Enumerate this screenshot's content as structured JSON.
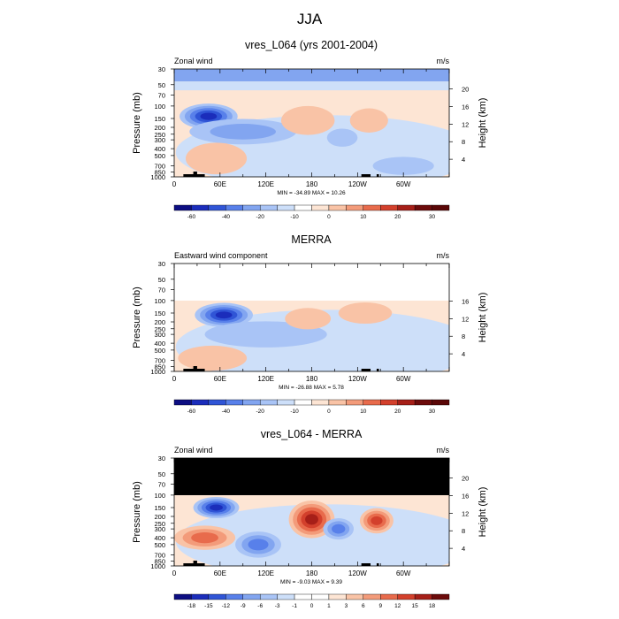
{
  "figure_title": "JJA",
  "chart_data": [
    {
      "type": "heatmap",
      "title": "vres_L064 (yrs 2001-2004)",
      "left_label": "Zonal wind",
      "right_label": "m/s",
      "xlabel": "",
      "ylabel": "Pressure (mb)",
      "ylabel_right": "Height (km)",
      "x_ticks": [
        "0",
        "60E",
        "120E",
        "180",
        "120W",
        "60W"
      ],
      "y_ticks": [
        "30",
        "50",
        "70",
        "100",
        "150",
        "200",
        "250",
        "300",
        "400",
        "500",
        "700",
        "850",
        "1000"
      ],
      "y2_ticks": [
        "4",
        "8",
        "12",
        "16",
        "20"
      ],
      "stats": "MIN = -34.89  MAX =  10.26",
      "colorbar_labels": [
        "-60",
        "-40",
        "-20",
        "-10",
        "0",
        "10",
        "20",
        "30"
      ],
      "min": -34.89,
      "max": 10.26,
      "top_pressure": 30,
      "field": [
        {
          "lon": 45,
          "p": 140,
          "value": -34,
          "rx": 38,
          "rp": 55,
          "sign": "neg"
        },
        {
          "lon": 90,
          "p": 230,
          "value": -12,
          "rx": 70,
          "rp": 90,
          "sign": "neg"
        },
        {
          "lon": 175,
          "p": 160,
          "value": 10,
          "rx": 35,
          "rp": 70,
          "sign": "pos"
        },
        {
          "lon": 255,
          "p": 160,
          "value": 8,
          "rx": 25,
          "rp": 60,
          "sign": "pos"
        },
        {
          "lon": 55,
          "p": 550,
          "value": 7,
          "rx": 40,
          "rp": 260,
          "sign": "pos"
        },
        {
          "lon": 220,
          "p": 280,
          "value": -5,
          "rx": 20,
          "rp": 80,
          "sign": "neg"
        },
        {
          "lon": 300,
          "p": 700,
          "value": -4,
          "rx": 40,
          "rp": 200,
          "sign": "neg"
        }
      ]
    },
    {
      "type": "heatmap",
      "title": "MERRA",
      "left_label": "Eastward wind component",
      "right_label": "m/s",
      "xlabel": "",
      "ylabel": "Pressure (mb)",
      "ylabel_right": "Height (km)",
      "x_ticks": [
        "0",
        "60E",
        "120E",
        "180",
        "120W",
        "60W"
      ],
      "y_ticks": [
        "30",
        "50",
        "70",
        "100",
        "150",
        "200",
        "250",
        "300",
        "400",
        "500",
        "700",
        "850",
        "1000"
      ],
      "y2_ticks": [
        "4",
        "8",
        "12",
        "16"
      ],
      "stats": "MIN = -26.88  MAX =  5.78",
      "colorbar_labels": [
        "-60",
        "-40",
        "-20",
        "-10",
        "0",
        "10",
        "20",
        "30"
      ],
      "min": -26.88,
      "max": 5.78,
      "top_pressure": 100,
      "field": [
        {
          "lon": 65,
          "p": 160,
          "value": -26,
          "rx": 38,
          "rp": 60,
          "sign": "neg"
        },
        {
          "lon": 120,
          "p": 300,
          "value": -8,
          "rx": 80,
          "rp": 120,
          "sign": "neg"
        },
        {
          "lon": 175,
          "p": 180,
          "value": 5,
          "rx": 30,
          "rp": 60,
          "sign": "pos"
        },
        {
          "lon": 250,
          "p": 150,
          "value": 4,
          "rx": 35,
          "rp": 50,
          "sign": "pos"
        },
        {
          "lon": 50,
          "p": 650,
          "value": 4,
          "rx": 45,
          "rp": 250,
          "sign": "pos"
        }
      ]
    },
    {
      "type": "heatmap",
      "title": "vres_L064 - MERRA",
      "left_label": "Zonal wind",
      "right_label": "m/s",
      "xlabel": "",
      "ylabel": "Pressure (mb)",
      "ylabel_right": "Height (km)",
      "x_ticks": [
        "0",
        "60E",
        "120E",
        "180",
        "120W",
        "60W"
      ],
      "y_ticks": [
        "30",
        "50",
        "70",
        "100",
        "150",
        "200",
        "250",
        "300",
        "400",
        "500",
        "700",
        "850",
        "1000"
      ],
      "y2_ticks": [
        "4",
        "8",
        "12",
        "16",
        "20"
      ],
      "stats": "MIN = -9.03  MAX =  9.39",
      "colorbar_labels": [
        "-18",
        "-15",
        "-12",
        "-9",
        "-6",
        "-3",
        "-1",
        "0",
        "1",
        "3",
        "6",
        "9",
        "12",
        "15",
        "18"
      ],
      "min": -9.03,
      "max": 9.39,
      "top_pressure": 100,
      "field": [
        {
          "lon": 180,
          "p": 220,
          "value": 9,
          "rx": 30,
          "rp": 120,
          "sign": "pos"
        },
        {
          "lon": 265,
          "p": 230,
          "value": 8,
          "rx": 22,
          "rp": 90,
          "sign": "pos"
        },
        {
          "lon": 55,
          "p": 150,
          "value": -9,
          "rx": 30,
          "rp": 50,
          "sign": "neg"
        },
        {
          "lon": 215,
          "p": 300,
          "value": -6,
          "rx": 20,
          "rp": 100,
          "sign": "neg"
        },
        {
          "lon": 40,
          "p": 400,
          "value": 6,
          "rx": 40,
          "rp": 150,
          "sign": "pos"
        },
        {
          "lon": 110,
          "p": 500,
          "value": -5,
          "rx": 30,
          "rp": 200,
          "sign": "neg"
        }
      ]
    }
  ],
  "colors": {
    "neg": [
      "#0d0e82",
      "#1b2dbb",
      "#3055d6",
      "#5880ea",
      "#82a5f0",
      "#a9c4f6",
      "#cddff9"
    ],
    "pos": [
      "#fde5d4",
      "#f9c3a6",
      "#f39b7a",
      "#e86b4c",
      "#d3402c",
      "#a61f18",
      "#6c0b0b"
    ],
    "topo": "#000000",
    "missing": "#000000"
  }
}
